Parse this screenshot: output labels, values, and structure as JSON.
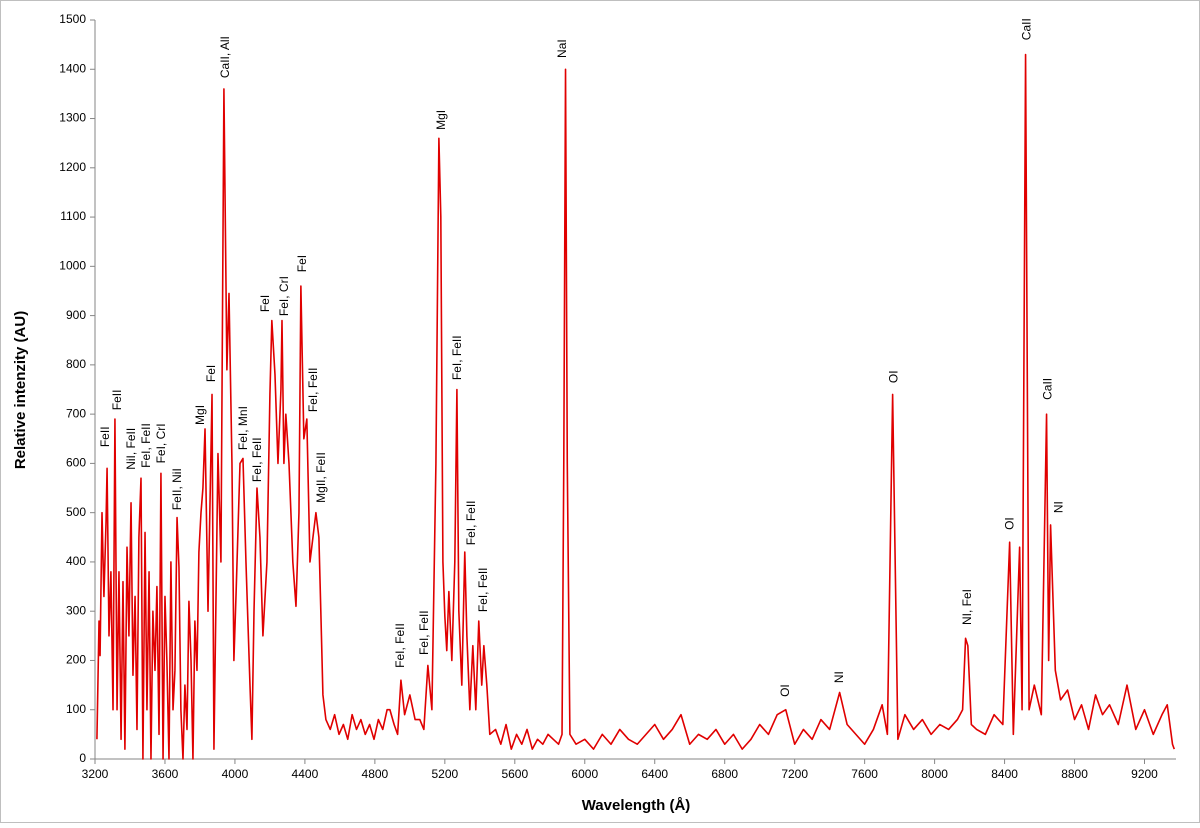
{
  "chart_data": {
    "type": "line",
    "x_label": "Wavelength (Å)",
    "y_label": "Relative intenzity (AU)",
    "xlim": [
      3200,
      9380
    ],
    "ylim": [
      0,
      1500
    ],
    "xticks": [
      3200,
      3600,
      4000,
      4400,
      4800,
      5200,
      5600,
      6000,
      6400,
      6800,
      7200,
      7600,
      8000,
      8400,
      8800,
      9200
    ],
    "yticks": [
      0,
      100,
      200,
      300,
      400,
      500,
      600,
      700,
      800,
      900,
      1000,
      1100,
      1200,
      1300,
      1400,
      1500
    ],
    "grid": false,
    "color": "#e00000",
    "x": [
      3211,
      3223,
      3229,
      3240,
      3251,
      3263,
      3269,
      3280,
      3291,
      3303,
      3314,
      3326,
      3337,
      3349,
      3360,
      3371,
      3383,
      3394,
      3406,
      3417,
      3429,
      3440,
      3451,
      3463,
      3474,
      3486,
      3497,
      3509,
      3520,
      3531,
      3543,
      3554,
      3566,
      3577,
      3589,
      3600,
      3611,
      3623,
      3634,
      3646,
      3657,
      3669,
      3680,
      3691,
      3703,
      3714,
      3726,
      3737,
      3749,
      3760,
      3771,
      3783,
      3794,
      3806,
      3817,
      3829,
      3846,
      3869,
      3880,
      3903,
      3920,
      3937,
      3954,
      3966,
      3983,
      3994,
      4006,
      4029,
      4046,
      4063,
      4086,
      4097,
      4109,
      4126,
      4143,
      4160,
      4183,
      4200,
      4211,
      4229,
      4246,
      4263,
      4269,
      4280,
      4291,
      4309,
      4331,
      4349,
      4366,
      4377,
      4394,
      4411,
      4429,
      4446,
      4463,
      4480,
      4491,
      4503,
      4520,
      4545,
      4570,
      4595,
      4620,
      4645,
      4670,
      4695,
      4720,
      4745,
      4770,
      4795,
      4820,
      4845,
      4870,
      4886,
      4910,
      4930,
      4949,
      4970,
      5000,
      5030,
      5057,
      5080,
      5103,
      5126,
      5149,
      5166,
      5177,
      5189,
      5200,
      5211,
      5223,
      5240,
      5257,
      5269,
      5280,
      5297,
      5314,
      5326,
      5343,
      5360,
      5377,
      5394,
      5411,
      5423,
      5440,
      5457,
      5490,
      5520,
      5550,
      5580,
      5610,
      5640,
      5670,
      5700,
      5730,
      5760,
      5790,
      5820,
      5850,
      5870,
      5880,
      5890,
      5900,
      5915,
      5950,
      6000,
      6050,
      6100,
      6150,
      6200,
      6250,
      6300,
      6350,
      6400,
      6450,
      6500,
      6550,
      6600,
      6650,
      6700,
      6750,
      6800,
      6850,
      6900,
      6950,
      7000,
      7050,
      7100,
      7149,
      7200,
      7250,
      7300,
      7350,
      7400,
      7457,
      7500,
      7550,
      7600,
      7650,
      7700,
      7730,
      7760,
      7790,
      7830,
      7880,
      7930,
      7980,
      8030,
      8080,
      8130,
      8160,
      8177,
      8190,
      8210,
      8240,
      8290,
      8340,
      8390,
      8429,
      8450,
      8486,
      8500,
      8520,
      8540,
      8570,
      8610,
      8640,
      8652,
      8663,
      8690,
      8720,
      8760,
      8800,
      8840,
      8880,
      8920,
      8960,
      9000,
      9050,
      9100,
      9150,
      9200,
      9250,
      9300,
      9330,
      9360,
      9370
    ],
    "values": [
      40,
      280,
      210,
      500,
      330,
      480,
      590,
      250,
      380,
      100,
      690,
      100,
      380,
      40,
      360,
      20,
      430,
      250,
      520,
      170,
      330,
      60,
      450,
      570,
      0,
      460,
      100,
      380,
      0,
      300,
      180,
      350,
      50,
      580,
      0,
      330,
      200,
      0,
      400,
      100,
      180,
      490,
      390,
      100,
      0,
      150,
      60,
      320,
      200,
      0,
      280,
      180,
      420,
      500,
      550,
      670,
      300,
      740,
      20,
      620,
      400,
      1360,
      790,
      945,
      600,
      200,
      330,
      600,
      610,
      400,
      150,
      40,
      300,
      550,
      450,
      250,
      400,
      740,
      890,
      780,
      600,
      750,
      890,
      600,
      700,
      600,
      400,
      310,
      500,
      960,
      650,
      690,
      400,
      450,
      500,
      450,
      300,
      130,
      80,
      60,
      90,
      50,
      70,
      40,
      90,
      60,
      80,
      50,
      70,
      40,
      80,
      60,
      100,
      100,
      70,
      50,
      160,
      90,
      130,
      80,
      80,
      60,
      190,
      100,
      600,
      1260,
      1100,
      400,
      290,
      220,
      340,
      200,
      400,
      750,
      300,
      150,
      420,
      250,
      100,
      230,
      100,
      280,
      150,
      230,
      150,
      50,
      60,
      30,
      70,
      20,
      50,
      30,
      60,
      20,
      40,
      30,
      50,
      40,
      30,
      50,
      600,
      1400,
      600,
      50,
      30,
      40,
      20,
      50,
      30,
      60,
      40,
      30,
      50,
      70,
      40,
      60,
      90,
      30,
      50,
      40,
      60,
      30,
      50,
      20,
      40,
      70,
      50,
      90,
      100,
      30,
      60,
      40,
      80,
      60,
      135,
      70,
      50,
      30,
      60,
      110,
      50,
      740,
      40,
      90,
      60,
      80,
      50,
      70,
      60,
      80,
      100,
      245,
      230,
      70,
      60,
      50,
      90,
      70,
      440,
      50,
      430,
      100,
      1430,
      100,
      150,
      90,
      700,
      200,
      475,
      180,
      120,
      140,
      80,
      110,
      60,
      130,
      90,
      110,
      70,
      150,
      60,
      100,
      50,
      90,
      110,
      30,
      20
    ],
    "annotations": [
      {
        "text": "FeII",
        "x": 3263,
        "y": 633
      },
      {
        "text": "FeII",
        "x": 3331,
        "y": 708
      },
      {
        "text": "NiI, FeII",
        "x": 3411,
        "y": 587
      },
      {
        "text": "FeI, FeII",
        "x": 3497,
        "y": 591
      },
      {
        "text": "FeI, CrI",
        "x": 3583,
        "y": 600
      },
      {
        "text": "FeII, NiI",
        "x": 3674,
        "y": 505
      },
      {
        "text": "MgI",
        "x": 3806,
        "y": 678
      },
      {
        "text": "FeI",
        "x": 3869,
        "y": 765
      },
      {
        "text": "CaII, AlI",
        "x": 3949,
        "y": 1382
      },
      {
        "text": "FeI, MnI",
        "x": 4051,
        "y": 627
      },
      {
        "text": "FeI, FeII",
        "x": 4131,
        "y": 562
      },
      {
        "text": "FeI",
        "x": 4177,
        "y": 907
      },
      {
        "text": "FeI, CrI",
        "x": 4286,
        "y": 899
      },
      {
        "text": "FeI",
        "x": 4389,
        "y": 988
      },
      {
        "text": "FeI, FeII",
        "x": 4451,
        "y": 704
      },
      {
        "text": "MgII, FeII",
        "x": 4497,
        "y": 520
      },
      {
        "text": "FeI, FeII",
        "x": 4949,
        "y": 185
      },
      {
        "text": "FeI, FeII",
        "x": 5086,
        "y": 211
      },
      {
        "text": "MgI",
        "x": 5183,
        "y": 1277
      },
      {
        "text": "FeI, FeII",
        "x": 5274,
        "y": 769
      },
      {
        "text": "FeI, FeII",
        "x": 5354,
        "y": 434
      },
      {
        "text": "FeI, FeII",
        "x": 5423,
        "y": 298
      },
      {
        "text": "NaI",
        "x": 5874,
        "y": 1423
      },
      {
        "text": "OI",
        "x": 7149,
        "y": 126
      },
      {
        "text": "NI",
        "x": 7457,
        "y": 154
      },
      {
        "text": "OI",
        "x": 7771,
        "y": 763
      },
      {
        "text": "NI, FeI",
        "x": 8189,
        "y": 272
      },
      {
        "text": "OI",
        "x": 8434,
        "y": 465
      },
      {
        "text": "CaII",
        "x": 8531,
        "y": 1459
      },
      {
        "text": "CaII",
        "x": 8651,
        "y": 729
      },
      {
        "text": "NI",
        "x": 8714,
        "y": 499
      }
    ]
  }
}
